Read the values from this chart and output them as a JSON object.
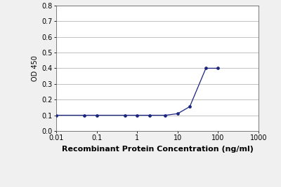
{
  "x": [
    0.01,
    0.05,
    0.1,
    0.5,
    1,
    2,
    5,
    10,
    20,
    50,
    100
  ],
  "y": [
    0.1,
    0.1,
    0.1,
    0.1,
    0.1,
    0.1,
    0.1,
    0.11,
    0.155,
    0.4,
    0.4
  ],
  "line_color": "#1a237e",
  "marker": "o",
  "marker_size": 2.8,
  "marker_color": "#1a237e",
  "xlabel": "Recombinant Protein Concentration (ng/ml)",
  "ylabel": "OD 450",
  "xlim_log": [
    -2,
    3
  ],
  "ylim": [
    0.0,
    0.8
  ],
  "yticks": [
    0.0,
    0.1,
    0.2,
    0.3,
    0.4,
    0.5,
    0.6,
    0.7,
    0.8
  ],
  "ytick_labels": [
    "0.0",
    "0.1",
    "0.2",
    "0.3",
    "0.4",
    "0.5",
    "0.6",
    "0.7",
    "0.8"
  ],
  "xtick_labels": [
    "0.01",
    "0.1",
    "1",
    "10",
    "100",
    "1000"
  ],
  "xtick_positions": [
    0.01,
    0.1,
    1,
    10,
    100,
    1000
  ],
  "background_color": "#f0f0f0",
  "plot_bg_color": "#ffffff",
  "grid_color": "#aaaaaa",
  "xlabel_fontsize": 8,
  "ylabel_fontsize": 7,
  "tick_fontsize": 7
}
